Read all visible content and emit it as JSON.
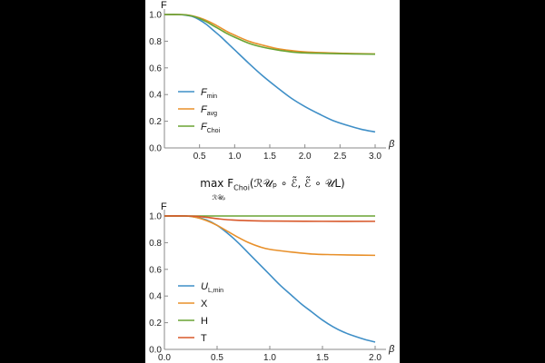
{
  "chart_data": [
    {
      "type": "line",
      "ylabel": "F",
      "xlabel": "β",
      "xlim": [
        0,
        3.0
      ],
      "ylim": [
        0,
        1.0
      ],
      "x_ticks": [
        "0.5",
        "1.0",
        "1.5",
        "2.0",
        "2.5",
        "3.0"
      ],
      "y_ticks": [
        "0.0",
        "0.2",
        "0.4",
        "0.6",
        "0.8",
        "1.0"
      ],
      "legend_position": "bottom-left",
      "series": [
        {
          "name": "F",
          "sub": "min",
          "color": "#3f8fc7",
          "x": [
            0,
            0.2,
            0.3,
            0.4,
            0.5,
            0.6,
            0.7,
            0.8,
            0.9,
            1.0,
            1.2,
            1.4,
            1.6,
            1.8,
            2.0,
            2.2,
            2.4,
            2.6,
            2.8,
            3.0
          ],
          "y": [
            1.0,
            1.0,
            0.995,
            0.985,
            0.96,
            0.925,
            0.88,
            0.835,
            0.785,
            0.735,
            0.635,
            0.54,
            0.455,
            0.375,
            0.31,
            0.255,
            0.205,
            0.17,
            0.14,
            0.12
          ]
        },
        {
          "name": "F",
          "sub": "avg",
          "color": "#e8902a",
          "x": [
            0,
            0.2,
            0.3,
            0.4,
            0.5,
            0.6,
            0.7,
            0.8,
            0.9,
            1.0,
            1.2,
            1.4,
            1.6,
            1.8,
            2.0,
            2.5,
            3.0
          ],
          "y": [
            1.0,
            1.0,
            0.998,
            0.99,
            0.975,
            0.955,
            0.93,
            0.9,
            0.87,
            0.845,
            0.8,
            0.77,
            0.745,
            0.73,
            0.72,
            0.71,
            0.705
          ]
        },
        {
          "name": "F",
          "sub": "Choi",
          "color": "#6aa433",
          "x": [
            0,
            0.2,
            0.3,
            0.4,
            0.5,
            0.6,
            0.7,
            0.8,
            0.9,
            1.0,
            1.2,
            1.4,
            1.6,
            1.8,
            2.0,
            2.5,
            3.0
          ],
          "y": [
            1.0,
            1.0,
            0.997,
            0.988,
            0.97,
            0.945,
            0.915,
            0.885,
            0.855,
            0.83,
            0.785,
            0.755,
            0.735,
            0.72,
            0.712,
            0.706,
            0.703
          ]
        }
      ]
    },
    {
      "type": "line",
      "title_lead": "max F",
      "title_sub": "Choi",
      "title_rest": "(ℛ𝒰ₚ ∘ ℰ̃, ℰ̃ ∘ 𝒰L)",
      "title_under": "ℛ𝒰ₚ",
      "ylabel": "F",
      "xlabel": "β",
      "xlim": [
        0,
        2.0
      ],
      "ylim": [
        0,
        1.0
      ],
      "x_ticks": [
        "0.0",
        "0.5",
        "1.0",
        "1.5",
        "2.0"
      ],
      "y_ticks": [
        "0.0",
        "0.2",
        "0.4",
        "0.6",
        "0.8",
        "1.0"
      ],
      "legend_position": "bottom-left",
      "series": [
        {
          "name": "U",
          "sub": "L,min",
          "color": "#3f8fc7",
          "x": [
            0,
            0.2,
            0.3,
            0.4,
            0.5,
            0.6,
            0.7,
            0.8,
            0.9,
            1.0,
            1.1,
            1.2,
            1.3,
            1.4,
            1.5,
            1.6,
            1.7,
            1.8,
            1.9,
            2.0
          ],
          "y": [
            1.0,
            1.0,
            0.99,
            0.97,
            0.93,
            0.87,
            0.8,
            0.72,
            0.64,
            0.56,
            0.48,
            0.41,
            0.34,
            0.28,
            0.22,
            0.17,
            0.13,
            0.1,
            0.075,
            0.055
          ]
        },
        {
          "name": "X",
          "sub": "",
          "color": "#e8902a",
          "x": [
            0,
            0.2,
            0.3,
            0.4,
            0.5,
            0.6,
            0.7,
            0.8,
            0.9,
            1.0,
            1.2,
            1.4,
            1.6,
            1.8,
            2.0
          ],
          "y": [
            1.0,
            1.0,
            0.99,
            0.965,
            0.93,
            0.885,
            0.84,
            0.8,
            0.77,
            0.75,
            0.73,
            0.715,
            0.71,
            0.707,
            0.705
          ]
        },
        {
          "name": "H",
          "sub": "",
          "color": "#6aa433",
          "x": [
            0,
            2.0
          ],
          "y": [
            1.0,
            1.0
          ]
        },
        {
          "name": "T",
          "sub": "",
          "color": "#d8582a",
          "x": [
            0,
            0.2,
            0.3,
            0.4,
            0.5,
            0.6,
            0.8,
            1.0,
            1.5,
            2.0
          ],
          "y": [
            1.0,
            1.0,
            0.998,
            0.99,
            0.98,
            0.972,
            0.965,
            0.962,
            0.96,
            0.96
          ]
        }
      ]
    }
  ]
}
